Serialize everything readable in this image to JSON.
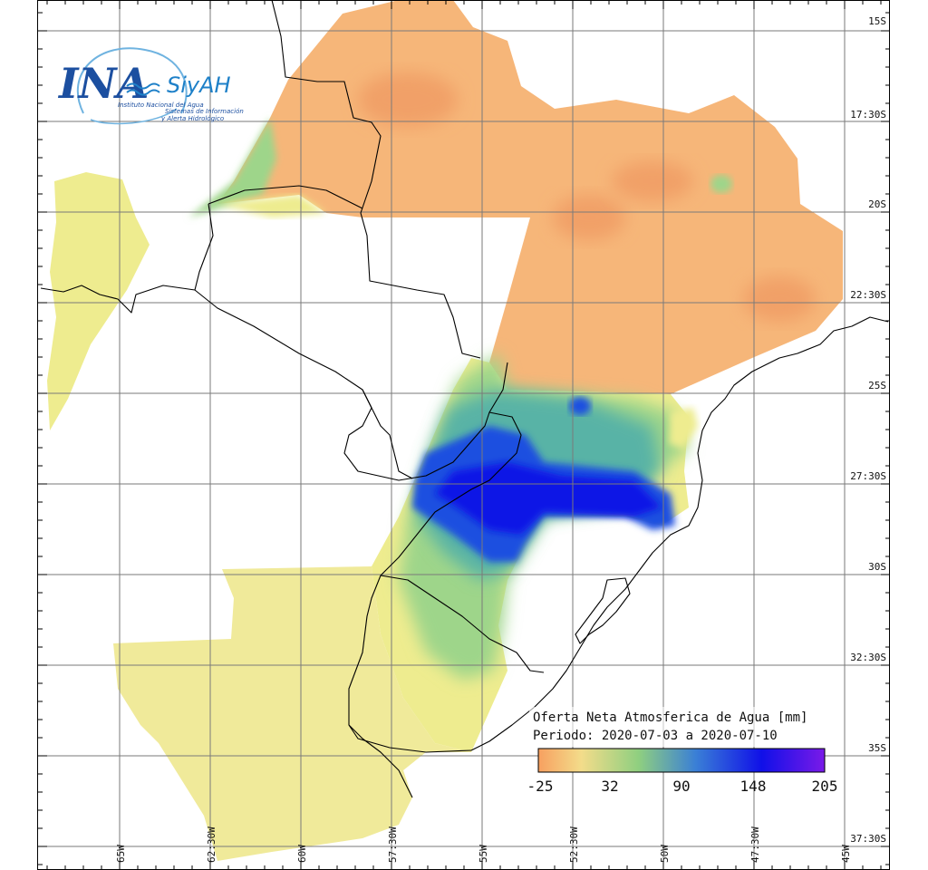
{
  "logo": {
    "brand": "INA",
    "product": "SiyAH",
    "org": "Instituto Nacional del Agua",
    "tagline_1": "Sistemas de Información",
    "tagline_2": "y Alerta Hidrológico"
  },
  "map_title": {
    "line1": "Oferta Neta Atmosferica de Agua [mm]",
    "line2": "Periodo: 2020-07-03 a 2020-07-10"
  },
  "colorbar": {
    "colors": [
      "#f7a060",
      "#f3dc8a",
      "#8fcf80",
      "#3a7fd6",
      "#1010e8",
      "#7a1ae8"
    ],
    "tick_labels": [
      "-25",
      "32",
      "90",
      "148",
      "205"
    ]
  },
  "lat_labels": [
    "15S",
    "17:30S",
    "20S",
    "22:30S",
    "25S",
    "27:30S",
    "30S",
    "32:30S",
    "35S",
    "37:30S"
  ],
  "lon_labels": [
    "65W",
    "62:30W",
    "60W",
    "57:30W",
    "55W",
    "52:30W",
    "50W",
    "47:30W",
    "45W"
  ],
  "field_colors": {
    "orange": "#f6b679",
    "orange_dark": "#f1a068",
    "yellow": "#eeec8f",
    "yellow_pale": "#f0ea9a",
    "green": "#9ed58a",
    "teal": "#58b3a6",
    "blue": "#1f4fe0",
    "deep_blue": "#0e14e6"
  }
}
